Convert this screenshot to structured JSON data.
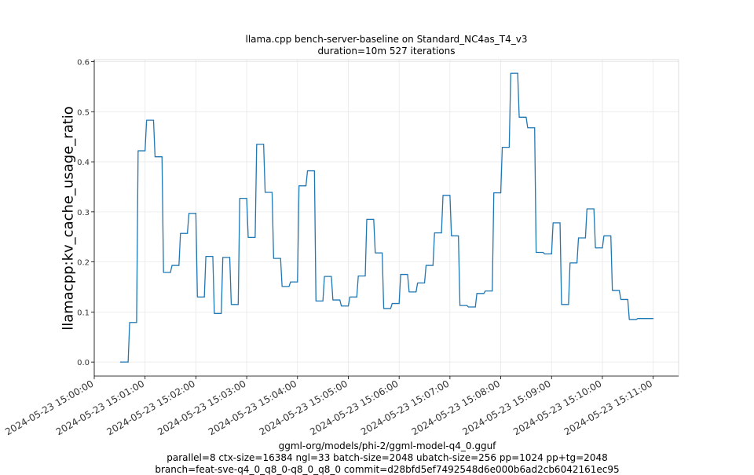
{
  "chart_data": {
    "type": "line",
    "title": "llama.cpp bench-server-baseline on Standard_NC4as_T4_v3",
    "subtitle": "duration=10m 527 iterations",
    "ylabel": "llamacpp:kv_cache_usage_ratio",
    "xlabel_lines": [
      "ggml-org/models/phi-2/ggml-model-q4_0.gguf",
      "parallel=8 ctx-size=16384 ngl=33 batch-size=2048 ubatch-size=256 pp=1024 pp+tg=2048",
      "branch=feat-sve-q4_0_q8_0-q8_0_q8_0 commit=d28bfd5ef7492548d6e000b6ad2cb6042161ec95"
    ],
    "ylim": [
      -0.028,
      0.604
    ],
    "yticks": [
      "0.0",
      "0.1",
      "0.2",
      "0.3",
      "0.4",
      "0.5",
      "0.6"
    ],
    "xlim": [
      "2024-05-23 15:00:00",
      "2024-05-23 15:11:30"
    ],
    "xticks": [
      "2024-05-23 15:00:00",
      "2024-05-23 15:01:00",
      "2024-05-23 15:02:00",
      "2024-05-23 15:03:00",
      "2024-05-23 15:04:00",
      "2024-05-23 15:05:00",
      "2024-05-23 15:06:00",
      "2024-05-23 15:07:00",
      "2024-05-23 15:08:00",
      "2024-05-23 15:09:00",
      "2024-05-23 15:10:00",
      "2024-05-23 15:11:00"
    ],
    "grid": true,
    "series": [
      {
        "color": "#1f77b4",
        "points": [
          [
            "2024-05-23 15:00:31",
            0.0
          ],
          [
            "2024-05-23 15:00:40",
            0.0
          ],
          [
            "2024-05-23 15:00:50",
            0.079
          ],
          [
            "2024-05-23 15:01:00",
            0.422
          ],
          [
            "2024-05-23 15:01:10",
            0.483
          ],
          [
            "2024-05-23 15:01:20",
            0.41
          ],
          [
            "2024-05-23 15:01:30",
            0.179
          ],
          [
            "2024-05-23 15:01:40",
            0.193
          ],
          [
            "2024-05-23 15:01:50",
            0.257
          ],
          [
            "2024-05-23 15:02:00",
            0.297
          ],
          [
            "2024-05-23 15:02:10",
            0.13
          ],
          [
            "2024-05-23 15:02:20",
            0.211
          ],
          [
            "2024-05-23 15:02:30",
            0.097
          ],
          [
            "2024-05-23 15:02:40",
            0.209
          ],
          [
            "2024-05-23 15:02:50",
            0.115
          ],
          [
            "2024-05-23 15:03:00",
            0.327
          ],
          [
            "2024-05-23 15:03:10",
            0.249
          ],
          [
            "2024-05-23 15:03:20",
            0.435
          ],
          [
            "2024-05-23 15:03:30",
            0.339
          ],
          [
            "2024-05-23 15:03:40",
            0.207
          ],
          [
            "2024-05-23 15:03:50",
            0.151
          ],
          [
            "2024-05-23 15:04:00",
            0.16
          ],
          [
            "2024-05-23 15:04:10",
            0.352
          ],
          [
            "2024-05-23 15:04:20",
            0.382
          ],
          [
            "2024-05-23 15:04:30",
            0.122
          ],
          [
            "2024-05-23 15:04:40",
            0.171
          ],
          [
            "2024-05-23 15:04:50",
            0.124
          ],
          [
            "2024-05-23 15:05:00",
            0.112
          ],
          [
            "2024-05-23 15:05:10",
            0.13
          ],
          [
            "2024-05-23 15:05:20",
            0.172
          ],
          [
            "2024-05-23 15:05:30",
            0.285
          ],
          [
            "2024-05-23 15:05:40",
            0.218
          ],
          [
            "2024-05-23 15:05:50",
            0.107
          ],
          [
            "2024-05-23 15:06:00",
            0.117
          ],
          [
            "2024-05-23 15:06:10",
            0.175
          ],
          [
            "2024-05-23 15:06:20",
            0.14
          ],
          [
            "2024-05-23 15:06:30",
            0.158
          ],
          [
            "2024-05-23 15:06:40",
            0.193
          ],
          [
            "2024-05-23 15:06:50",
            0.258
          ],
          [
            "2024-05-23 15:07:00",
            0.333
          ],
          [
            "2024-05-23 15:07:10",
            0.252
          ],
          [
            "2024-05-23 15:07:20",
            0.113
          ],
          [
            "2024-05-23 15:07:30",
            0.11
          ],
          [
            "2024-05-23 15:07:40",
            0.137
          ],
          [
            "2024-05-23 15:07:50",
            0.142
          ],
          [
            "2024-05-23 15:08:00",
            0.338
          ],
          [
            "2024-05-23 15:08:10",
            0.429
          ],
          [
            "2024-05-23 15:08:20",
            0.577
          ],
          [
            "2024-05-23 15:08:30",
            0.489
          ],
          [
            "2024-05-23 15:08:40",
            0.468
          ],
          [
            "2024-05-23 15:08:50",
            0.219
          ],
          [
            "2024-05-23 15:09:00",
            0.216
          ],
          [
            "2024-05-23 15:09:10",
            0.278
          ],
          [
            "2024-05-23 15:09:20",
            0.115
          ],
          [
            "2024-05-23 15:09:30",
            0.198
          ],
          [
            "2024-05-23 15:09:40",
            0.248
          ],
          [
            "2024-05-23 15:09:50",
            0.306
          ],
          [
            "2024-05-23 15:10:00",
            0.228
          ],
          [
            "2024-05-23 15:10:10",
            0.252
          ],
          [
            "2024-05-23 15:10:20",
            0.143
          ],
          [
            "2024-05-23 15:10:30",
            0.125
          ],
          [
            "2024-05-23 15:10:40",
            0.085
          ],
          [
            "2024-05-23 15:10:50",
            0.087
          ],
          [
            "2024-05-23 15:11:00",
            0.087
          ]
        ]
      }
    ]
  }
}
